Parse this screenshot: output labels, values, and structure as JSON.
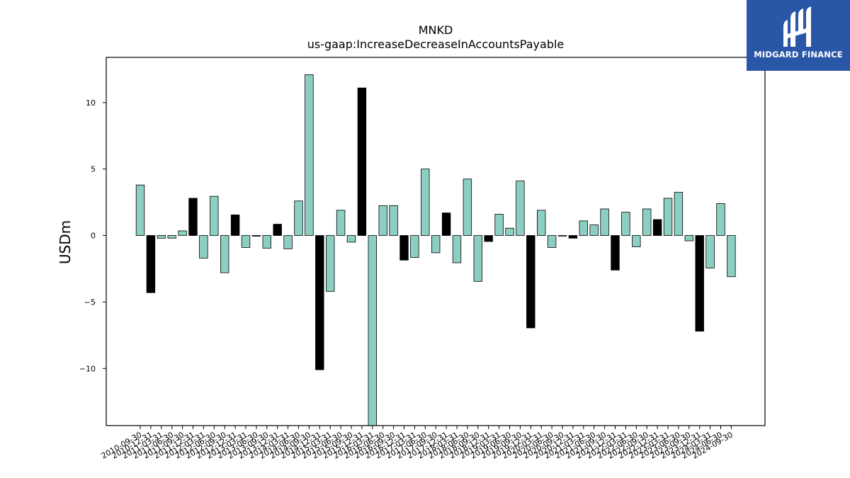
{
  "chart_data": {
    "type": "bar",
    "title": "MNKD",
    "subtitle": "us-gaap:IncreaseDecreaseInAccountsPayable",
    "xlabel": "",
    "ylabel": "USDm",
    "ylim": [
      -14.3,
      13.4
    ],
    "yticks": [
      -10,
      -5,
      0,
      5,
      10
    ],
    "ytick_labels": [
      "−10",
      "−5",
      "0",
      "5",
      "10"
    ],
    "categories": [
      "2010-09-30",
      "2010-12-31",
      "2011-03-31",
      "2011-06-30",
      "2011-09-30",
      "2011-12-31",
      "2012-03-31",
      "2012-06-30",
      "2012-09-30",
      "2012-12-31",
      "2013-03-31",
      "2013-06-30",
      "2013-09-30",
      "2013-12-31",
      "2014-03-31",
      "2014-06-30",
      "2014-09-30",
      "2014-12-31",
      "2015-03-31",
      "2015-06-30",
      "2015-09-30",
      "2015-12-31",
      "2016-03-31",
      "2016-06-30",
      "2016-09-30",
      "2016-12-31",
      "2017-03-31",
      "2017-06-30",
      "2017-09-30",
      "2017-12-31",
      "2018-03-31",
      "2018-06-30",
      "2018-09-30",
      "2018-12-31",
      "2019-03-31",
      "2019-06-30",
      "2019-09-30",
      "2019-12-31",
      "2020-03-31",
      "2020-06-30",
      "2020-09-30",
      "2020-12-31",
      "2021-03-31",
      "2021-06-30",
      "2021-09-30",
      "2021-12-31",
      "2022-03-31",
      "2022-06-30",
      "2022-09-30",
      "2022-12-31",
      "2023-03-31",
      "2023-06-30",
      "2023-09-30",
      "2023-12-31",
      "2024-03-31",
      "2024-06-30",
      "2024-09-30"
    ],
    "values": [
      3.8,
      -4.3,
      -0.2,
      -0.2,
      0.35,
      2.8,
      -1.7,
      2.95,
      -2.8,
      1.55,
      -0.9,
      -0.05,
      -0.95,
      0.85,
      -1.0,
      2.6,
      12.1,
      -10.1,
      -4.2,
      1.9,
      -0.5,
      11.1,
      -14.5,
      2.25,
      2.25,
      -1.85,
      -1.65,
      5.0,
      -1.3,
      1.7,
      -2.05,
      4.25,
      -3.45,
      -0.45,
      1.6,
      0.55,
      4.1,
      -6.95,
      1.9,
      -0.9,
      -0.05,
      -0.2,
      1.1,
      0.8,
      2.0,
      -2.6,
      1.75,
      -0.85,
      2.0,
      1.2,
      2.8,
      3.25,
      -0.4,
      -7.2,
      -2.45,
      2.4,
      -3.1
    ],
    "bar_colors": [
      "#8ccfc2",
      "#000000",
      "#8ccfc2",
      "#8ccfc2",
      "#8ccfc2",
      "#000000",
      "#8ccfc2",
      "#8ccfc2",
      "#8ccfc2",
      "#000000",
      "#8ccfc2",
      "#000000",
      "#8ccfc2",
      "#000000",
      "#8ccfc2",
      "#8ccfc2",
      "#8ccfc2",
      "#000000",
      "#8ccfc2",
      "#8ccfc2",
      "#8ccfc2",
      "#000000",
      "#8ccfc2",
      "#8ccfc2",
      "#8ccfc2",
      "#000000",
      "#8ccfc2",
      "#8ccfc2",
      "#8ccfc2",
      "#000000",
      "#8ccfc2",
      "#8ccfc2",
      "#8ccfc2",
      "#000000",
      "#8ccfc2",
      "#8ccfc2",
      "#8ccfc2",
      "#000000",
      "#8ccfc2",
      "#8ccfc2",
      "#8ccfc2",
      "#000000",
      "#8ccfc2",
      "#8ccfc2",
      "#8ccfc2",
      "#000000",
      "#8ccfc2",
      "#8ccfc2",
      "#8ccfc2",
      "#000000",
      "#8ccfc2",
      "#8ccfc2",
      "#8ccfc2",
      "#000000",
      "#8ccfc2",
      "#8ccfc2",
      "#8ccfc2"
    ],
    "grid": false,
    "legend": "none"
  },
  "logo": {
    "text": "MIDGARD FINANCE",
    "background": "#2a56a8"
  }
}
